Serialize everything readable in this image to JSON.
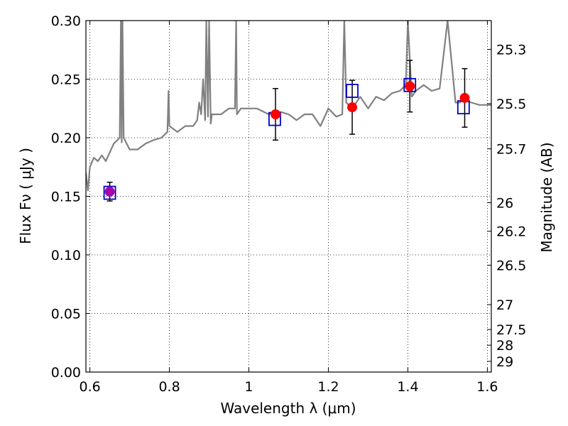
{
  "chart_data": {
    "type": "scatter",
    "xlabel": "Wavelength  λ (μm)",
    "ylabel": "Flux  Fν  ( μJy )",
    "y2label": "Magnitude (AB)",
    "xlim": [
      0.59,
      1.61
    ],
    "ylim": [
      0.0,
      0.3
    ],
    "grid": true,
    "x_ticks": [
      "0.6",
      "0.8",
      "1",
      "1.2",
      "1.4",
      "1.6"
    ],
    "y_ticks": [
      "0.00",
      "0.05",
      "0.10",
      "0.15",
      "0.20",
      "0.25",
      "0.30"
    ],
    "mag_ticks": [
      "25.3",
      "25.5",
      "25.7",
      "26",
      "26.2",
      "26.5",
      "27",
      "27.5",
      "28",
      "29"
    ],
    "colors": {
      "observed": "#ff0000",
      "model": "#0000cc",
      "spectrum": "#808080",
      "first_point": "#aa00aa"
    },
    "series": [
      {
        "x": [
          0.59,
          0.595,
          0.6,
          0.61,
          0.62,
          0.63,
          0.64,
          0.66,
          0.675,
          0.678,
          0.68,
          0.682,
          0.685,
          0.7,
          0.72,
          0.74,
          0.76,
          0.78,
          0.795,
          0.798,
          0.8,
          0.82,
          0.84,
          0.86,
          0.87,
          0.875,
          0.88,
          0.885,
          0.89,
          0.893,
          0.897,
          0.9,
          0.904,
          0.907,
          0.91,
          0.93,
          0.95,
          0.965,
          0.968,
          0.97,
          0.98,
          1.0,
          1.02,
          1.05,
          1.08,
          1.1,
          1.12,
          1.14,
          1.16,
          1.18,
          1.2,
          1.22,
          1.235,
          1.24,
          1.245,
          1.26,
          1.28,
          1.3,
          1.32,
          1.34,
          1.36,
          1.38,
          1.395,
          1.4,
          1.41,
          1.42,
          1.44,
          1.46,
          1.48,
          1.5,
          1.52,
          1.53,
          1.54,
          1.56,
          1.58,
          1.61
        ],
        "y": [
          0.17,
          0.155,
          0.175,
          0.183,
          0.18,
          0.185,
          0.18,
          0.195,
          0.2,
          0.3,
          0.196,
          0.3,
          0.2,
          0.19,
          0.19,
          0.195,
          0.198,
          0.2,
          0.205,
          0.24,
          0.21,
          0.205,
          0.21,
          0.21,
          0.215,
          0.23,
          0.22,
          0.25,
          0.215,
          0.3,
          0.218,
          0.3,
          0.212,
          0.22,
          0.22,
          0.22,
          0.225,
          0.225,
          0.3,
          0.22,
          0.225,
          0.225,
          0.225,
          0.22,
          0.222,
          0.22,
          0.215,
          0.22,
          0.22,
          0.21,
          0.225,
          0.218,
          0.22,
          0.3,
          0.23,
          0.225,
          0.235,
          0.225,
          0.235,
          0.232,
          0.238,
          0.24,
          0.245,
          0.3,
          0.235,
          0.24,
          0.245,
          0.24,
          0.242,
          0.3,
          0.23,
          0.23,
          0.232,
          0.23,
          0.228,
          0.228
        ]
      },
      {
        "x": [
          0.65,
          1.065,
          1.26,
          1.405,
          1.54
        ],
        "y": [
          0.153,
          0.216,
          0.24,
          0.245,
          0.226
        ]
      },
      {
        "x": [
          0.65,
          1.067,
          1.26,
          1.405,
          1.543
        ],
        "y": [
          0.154,
          0.22,
          0.226,
          0.244,
          0.234
        ],
        "yerr": [
          0.008,
          0.022,
          0.023,
          0.022,
          0.025
        ]
      }
    ]
  }
}
